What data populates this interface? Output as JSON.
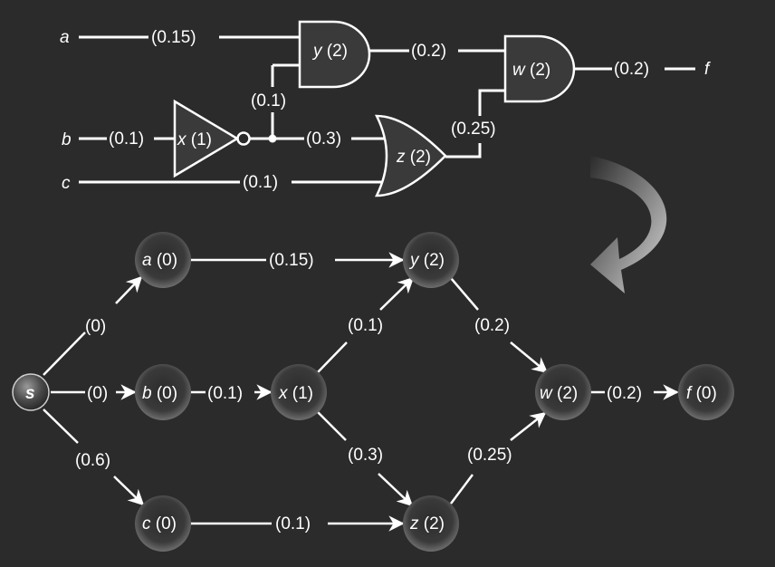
{
  "circuit": {
    "inputs": {
      "a": "a",
      "b": "b",
      "c": "c"
    },
    "output": "f",
    "gates": {
      "x": {
        "name": "x",
        "delay": "(1)"
      },
      "y": {
        "name": "y",
        "delay": "(2)"
      },
      "z": {
        "name": "z",
        "delay": "(2)"
      },
      "w": {
        "name": "w",
        "delay": "(2)"
      }
    },
    "wire_delays": {
      "a_y": "(0.15)",
      "b_x": "(0.1)",
      "x_y": "(0.1)",
      "x_z": "(0.3)",
      "c_z": "(0.1)",
      "y_w": "(0.2)",
      "z_w": "(0.25)",
      "w_f": "(0.2)"
    }
  },
  "graph": {
    "nodes": {
      "s": {
        "name": "s",
        "weight": ""
      },
      "a": {
        "name": "a",
        "weight": "(0)"
      },
      "b": {
        "name": "b",
        "weight": "(0)"
      },
      "c": {
        "name": "c",
        "weight": "(0)"
      },
      "x": {
        "name": "x",
        "weight": "(1)"
      },
      "y": {
        "name": "y",
        "weight": "(2)"
      },
      "z": {
        "name": "z",
        "weight": "(2)"
      },
      "w": {
        "name": "w",
        "weight": "(2)"
      },
      "f": {
        "name": "f",
        "weight": "(0)"
      }
    },
    "edges": {
      "s_a": "(0)",
      "s_b": "(0)",
      "s_c": "(0.6)",
      "a_y": "(0.15)",
      "b_x": "(0.1)",
      "c_z": "(0.1)",
      "x_y": "(0.1)",
      "x_z": "(0.3)",
      "y_w": "(0.2)",
      "z_w": "(0.25)",
      "w_f": "(0.2)"
    }
  },
  "colors": {
    "background": "#2b2b2b",
    "node_fill": "#2a2a2a",
    "gate_fill": "#3a3a3a",
    "line": "#ffffff"
  }
}
